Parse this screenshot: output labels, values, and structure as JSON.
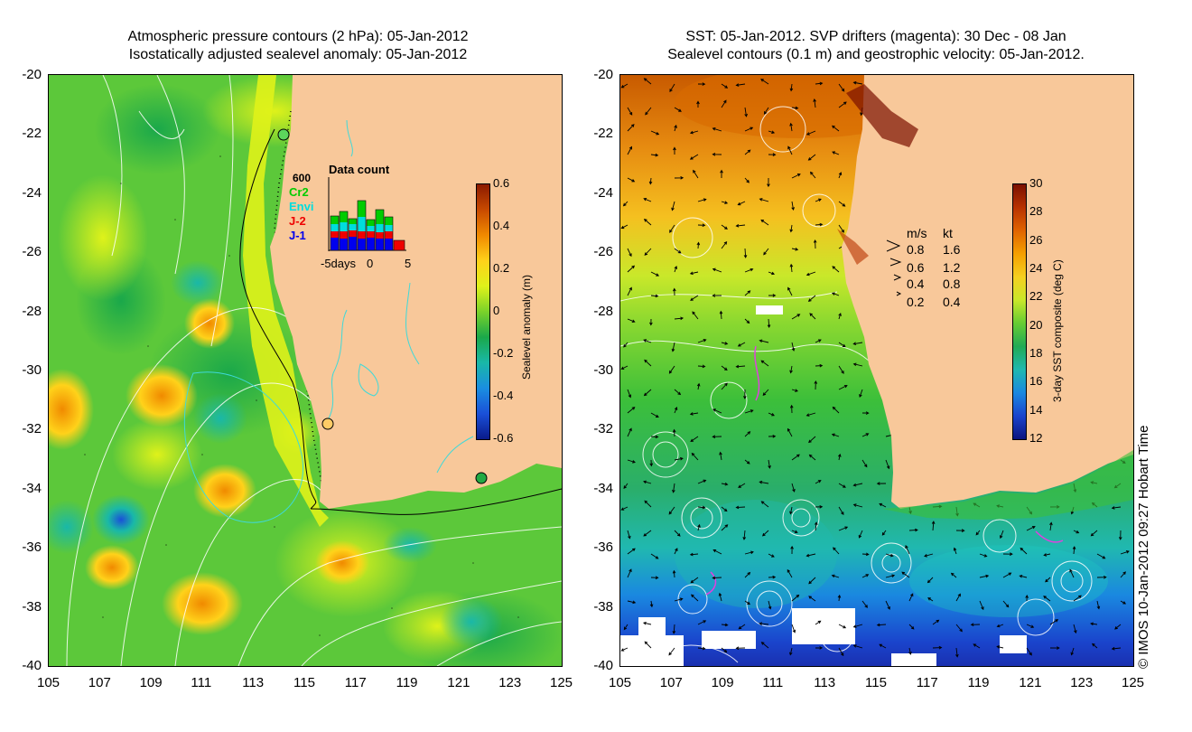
{
  "left_panel": {
    "title_line1": "Atmospheric pressure contours (2 hPa): 05-Jan-2012",
    "title_line2": "Isostatically adjusted sealevel anomaly: 05-Jan-2012",
    "colorbar": {
      "label": "Sealevel anomaly (m)",
      "ticks": [
        "0.6",
        "0.4",
        "0.2",
        "0",
        "-0.2",
        "-0.4",
        "-0.6"
      ],
      "colors": [
        "#8b1a00",
        "#c84a00",
        "#f08a00",
        "#ffd21a",
        "#dff21a",
        "#7ad22a",
        "#1aa84a",
        "#19b8a8",
        "#1a8ee0",
        "#1a50d8",
        "#0a1a8a"
      ]
    },
    "data_count": {
      "title": "Data count",
      "ymax_label": "600",
      "series_labels": [
        "Cr2",
        "Envi",
        "J-2",
        "J-1"
      ],
      "series_colors": [
        "#00cc00",
        "#00dddd",
        "#ee0000",
        "#0000ee"
      ],
      "xticks": [
        "-5days",
        "0",
        "5"
      ]
    }
  },
  "right_panel": {
    "title_line1": "SST: 05-Jan-2012. SVP drifters (magenta): 30 Dec - 08 Jan",
    "title_line2": "Sealevel contours (0.1 m) and geostrophic velocity: 05-Jan-2012.",
    "colorbar": {
      "label": "3-day SST composite (deg C)",
      "ticks": [
        "30",
        "28",
        "26",
        "24",
        "22",
        "20",
        "18",
        "16",
        "14",
        "12"
      ],
      "colors": [
        "#7a1000",
        "#b83200",
        "#e06400",
        "#f5a000",
        "#f5d020",
        "#c9e82a",
        "#66cc33",
        "#22aa55",
        "#20b8b0",
        "#1a88e0",
        "#1a44cc",
        "#0a1480"
      ]
    },
    "velocity_legend": {
      "header_ms": "m/s",
      "header_kt": "kt",
      "rows": [
        {
          "ms": "0.8",
          "kt": "1.6"
        },
        {
          "ms": "0.6",
          "kt": "1.2"
        },
        {
          "ms": "0.4",
          "kt": "0.8"
        },
        {
          "ms": "0.2",
          "kt": "0.4"
        }
      ]
    }
  },
  "axes": {
    "x_ticks": [
      "105",
      "107",
      "109",
      "111",
      "113",
      "115",
      "117",
      "119",
      "121",
      "123",
      "125"
    ],
    "y_ticks": [
      "-20",
      "-22",
      "-24",
      "-26",
      "-28",
      "-30",
      "-32",
      "-34",
      "-36",
      "-38",
      "-40"
    ]
  },
  "credit": "© IMOS 10-Jan-2012 09:27 Hobart Time",
  "colors": {
    "land": "#f8c89a",
    "ocean_green": "#3cc832",
    "ocean_yellowgreen": "#c8e628",
    "contour": "#ffffff"
  }
}
